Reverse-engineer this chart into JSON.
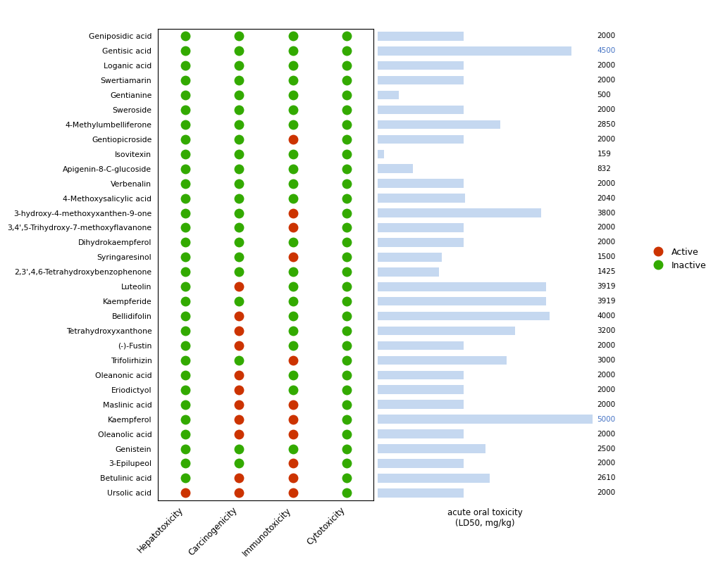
{
  "compounds": [
    "Geniposidic acid",
    "Gentisic acid",
    "Loganic acid",
    "Swertiamarin",
    "Gentianine",
    "Sweroside",
    "4-Methylumbelliferone",
    "Gentiopicroside",
    "Isovitexin",
    "Apigenin-8-C-glucoside",
    "Verbenalin",
    "4-Methoxysalicylic acid",
    "3-hydroxy-4-methoxyxanthen-9-one",
    "3,4',5-Trihydroxy-7-methoxyflavanone",
    "Dihydrokaempferol",
    "Syringaresinol",
    "2,3',4,6-Tetrahydroxybenzophenone",
    "Luteolin",
    "Kaempferide",
    "Bellidifolin",
    "Tetrahydroxyxanthone",
    "(-)-Fustin",
    "Trifolirhizin",
    "Oleanonic acid",
    "Eriodictyol",
    "Maslinic acid",
    "Kaempferol",
    "Oleanolic acid",
    "Genistein",
    "3-Epilupeol",
    "Betulinic acid",
    "Ursolic acid"
  ],
  "ld50": [
    2000,
    4500,
    2000,
    2000,
    500,
    2000,
    2850,
    2000,
    159,
    832,
    2000,
    2040,
    3800,
    2000,
    2000,
    1500,
    1425,
    3919,
    3919,
    4000,
    3200,
    2000,
    3000,
    2000,
    2000,
    2000,
    5000,
    2000,
    2500,
    2000,
    2610,
    2000
  ],
  "hepatotoxicity": [
    "I",
    "I",
    "I",
    "I",
    "I",
    "I",
    "I",
    "I",
    "I",
    "I",
    "I",
    "I",
    "I",
    "I",
    "I",
    "I",
    "I",
    "I",
    "I",
    "I",
    "I",
    "I",
    "I",
    "I",
    "I",
    "I",
    "I",
    "I",
    "I",
    "I",
    "I",
    "A"
  ],
  "carcinogenicity": [
    "I",
    "I",
    "I",
    "I",
    "I",
    "I",
    "I",
    "I",
    "I",
    "I",
    "I",
    "I",
    "I",
    "I",
    "I",
    "I",
    "I",
    "A",
    "I",
    "A",
    "A",
    "A",
    "I",
    "A",
    "A",
    "A",
    "A",
    "A",
    "I",
    "I",
    "A",
    "A"
  ],
  "immunotoxicity": [
    "I",
    "I",
    "I",
    "I",
    "I",
    "I",
    "I",
    "A",
    "I",
    "I",
    "I",
    "I",
    "A",
    "A",
    "I",
    "A",
    "I",
    "I",
    "I",
    "I",
    "I",
    "I",
    "A",
    "I",
    "I",
    "A",
    "A",
    "A",
    "I",
    "A",
    "A",
    "A"
  ],
  "cytotoxicity": [
    "I",
    "I",
    "I",
    "I",
    "I",
    "I",
    "I",
    "I",
    "I",
    "I",
    "I",
    "I",
    "I",
    "I",
    "I",
    "I",
    "I",
    "I",
    "I",
    "I",
    "I",
    "I",
    "I",
    "I",
    "I",
    "I",
    "I",
    "I",
    "I",
    "I",
    "I",
    "I"
  ],
  "active_color": "#cc3300",
  "inactive_color": "#33aa00",
  "bar_color": "#c5d8f0",
  "bar_value_color_highlight": "#4472c4",
  "highlight_values": [
    4500,
    5000
  ],
  "max_ld50": 5000,
  "categories": [
    "Hepatotoxicity",
    "Carcinogenicity",
    "Immunotoxicity",
    "Cytotoxicity"
  ]
}
